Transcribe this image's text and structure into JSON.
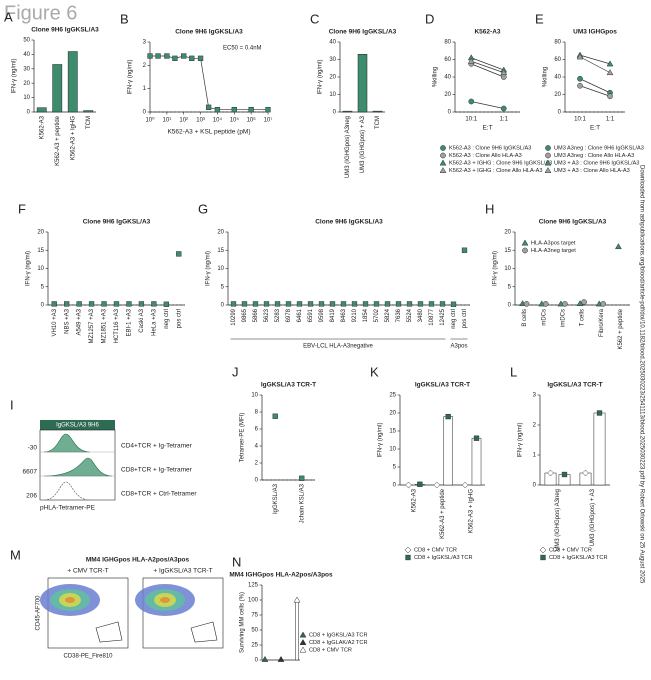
{
  "figure_title": "Figure 6",
  "side_note": "Downloaded from ashpublications.org/blood/article-pdf/doi/10.1182/blood.2025030223/2541113/blood.2025030223.pdf by Robert Orlowski on 25 August 2025",
  "chart_data": [
    {
      "letter": "A",
      "type": "bar",
      "title": "Clone 9H6 IgGKSL/A3",
      "y_label": "IFN-γ (ng/ml)",
      "categories": [
        "K562-A3",
        "K562-A3 + peptide",
        "K562-A3 + IgHG",
        "TCM"
      ],
      "values": [
        3,
        33,
        42,
        1
      ],
      "color": "#3d8c6e",
      "ylim": [
        0,
        50
      ],
      "yticks": [
        0,
        10,
        20,
        30,
        40,
        50
      ]
    },
    {
      "letter": "B",
      "type": "line",
      "title": "Clone 9H6 IgGKSL/A3",
      "y_label": "IFN-γ (ng/ml)",
      "x_label": "K562-A3 + KSL peptide (pM)",
      "annotation": "EC50 = 0.4nM",
      "xlog": true,
      "x": [
        1,
        3,
        10,
        30,
        100,
        300,
        1000,
        3000,
        10000,
        100000,
        1000000,
        10000000
      ],
      "values": [
        2.4,
        2.4,
        2.4,
        2.3,
        2.4,
        2.3,
        2.3,
        0.2,
        0.1,
        0.1,
        0.1,
        0.1
      ],
      "color": "#3d8c6e",
      "xlim": [
        1,
        10000000
      ],
      "xticks": [
        {
          "value": 1,
          "label": "10⁰"
        },
        {
          "value": 10,
          "label": "10¹"
        },
        {
          "value": 100,
          "label": "10²"
        },
        {
          "value": 1000,
          "label": "10³"
        },
        {
          "value": 10000,
          "label": "10⁴"
        },
        {
          "value": 100000,
          "label": "10⁵"
        },
        {
          "value": 1000000,
          "label": "10⁶"
        },
        {
          "value": 10000000,
          "label": "10⁷"
        }
      ],
      "ylim": [
        0,
        3
      ],
      "yticks": [
        0,
        1,
        2,
        3
      ]
    },
    {
      "letter": "C",
      "type": "bar",
      "title": "Clone 9H6 IgGKSL/A3",
      "y_label": "IFN-γ (ng/ml)",
      "categories": [
        "UM3 (IGHGpos) A3neg",
        "UM3 (IGHGpos) + A3",
        "TCM"
      ],
      "values": [
        0.5,
        33,
        0.5
      ],
      "color": "#3d8c6e",
      "ylim": [
        0,
        40
      ],
      "yticks": [
        0,
        10,
        20,
        30,
        40
      ]
    },
    {
      "letter": "D",
      "type": "line",
      "title": "K562-A3",
      "y_label": "%killing",
      "x_label": "E:T",
      "categories": [
        "10:1",
        "1:1"
      ],
      "ylim": [
        0,
        80
      ],
      "yticks": [
        0,
        20,
        40,
        60,
        80
      ],
      "series": [
        {
          "name": "K562-A3 : Clone 9H6 IgGKSL/A3",
          "color": "#3d8c6e",
          "marker": "circle",
          "values": [
            12,
            4
          ]
        },
        {
          "name": "K562-A3 : Clone Allo HLA-A3",
          "color": "#a0a0a0",
          "marker": "circle",
          "values": [
            55,
            40
          ]
        },
        {
          "name": "K562-A3 + IGHG : Clone 9H6 IgGKSL/A3",
          "color": "#3d8c6e",
          "marker": "triangle",
          "values": [
            62,
            48
          ]
        },
        {
          "name": "K562-A3 + IGHG : Clone Allo HLA-A3",
          "color": "#a0a0a0",
          "marker": "triangle",
          "values": [
            58,
            45
          ]
        }
      ]
    },
    {
      "letter": "E",
      "type": "line",
      "title": "UM3 IGHGpos",
      "y_label": "%killing",
      "x_label": "E:T",
      "categories": [
        "10:1",
        "1:1"
      ],
      "ylim": [
        0,
        80
      ],
      "yticks": [
        0,
        20,
        40,
        60,
        80
      ],
      "series": [
        {
          "name": "UM3 A3neg : Clone 9H6 IgGKSL/A3",
          "color": "#3d8c6e",
          "marker": "circle",
          "values": [
            38,
            22
          ]
        },
        {
          "name": "UM3 A3neg : Clone Allo HLA-A3",
          "color": "#a0a0a0",
          "marker": "circle",
          "values": [
            30,
            18
          ]
        },
        {
          "name": "UM3 + A3 : Clone 9H6 IgGKSL/A3",
          "color": "#3d8c6e",
          "marker": "triangle",
          "values": [
            65,
            55
          ]
        },
        {
          "name": "UM3 + A3 : Clone Allo HLA-A3",
          "color": "#a0a0a0",
          "marker": "triangle",
          "values": [
            63,
            45
          ]
        }
      ]
    },
    {
      "letter": "F",
      "type": "scatter",
      "title": "Clone 9H6 IgGKSL/A3",
      "y_label": "IFN-γ (ng/ml)",
      "categories": [
        "VH10 +A3",
        "NBS +A3",
        "A549 +A3",
        "MZ1257 +A3",
        "MZ1851 +A3",
        "HCT116 +A3",
        "EBI-1 +A3",
        "Caski A3",
        "HeLa +A3",
        "neg ctrl",
        "pos ctrl"
      ],
      "values": [
        0.3,
        0.3,
        0.3,
        0.3,
        0.3,
        0.3,
        0.3,
        0.3,
        0.3,
        0.2,
        14
      ],
      "color": "#3d8c6e",
      "marker": "square",
      "ylim": [
        0,
        20
      ],
      "yticks": [
        0,
        5,
        10,
        15,
        20
      ]
    },
    {
      "letter": "G",
      "type": "scatter",
      "title": "Clone 9H6 IgGKSL/A3",
      "y_label": "IFN-γ (ng/ml)",
      "categories": [
        "10299",
        "9865",
        "5866",
        "5623",
        "5283",
        "6978",
        "6461",
        "6591",
        "9598",
        "8419",
        "8463",
        "9210",
        "1854",
        "5702",
        "5824",
        "7636",
        "5524",
        "3480",
        "10877",
        "12425",
        "neg ctrl",
        "pos ctrl"
      ],
      "values": [
        0.3,
        0.3,
        0.3,
        0.3,
        0.3,
        0.3,
        0.3,
        0.3,
        0.3,
        0.3,
        0.3,
        0.3,
        0.3,
        0.3,
        0.3,
        0.3,
        0.3,
        0.3,
        0.3,
        0.3,
        0.2,
        15
      ],
      "color": "#3d8c6e",
      "marker": "square",
      "group_labels": [
        "EBV-LCL HLA-A3negative",
        "A3pos"
      ],
      "ylim": [
        0,
        20
      ],
      "yticks": [
        0,
        5,
        10,
        15,
        20
      ]
    },
    {
      "letter": "H",
      "type": "scatter",
      "title": "Clone 9H6 IgGKSL/A3",
      "y_label": "IFN-γ (ng/ml)",
      "categories": [
        "B cells",
        "mDCs",
        "imDCs",
        "T cells",
        "Fibro/Kera",
        "K562 + peptide"
      ],
      "ylim": [
        0,
        20
      ],
      "yticks": [
        0,
        5,
        10,
        15,
        20
      ],
      "series": [
        {
          "name": "HLA-A3pos target",
          "color": "#3d8c6e",
          "marker": "triangle",
          "values": [
            0.4,
            0.3,
            0.3,
            0.4,
            0.3,
            16
          ]
        },
        {
          "name": "HLA-A3neg target",
          "color": "#a0a0a0",
          "marker": "circle",
          "values": [
            0.3,
            0.3,
            0.3,
            0.8,
            0.3,
            null
          ]
        }
      ]
    },
    {
      "letter": "I",
      "type": "flow",
      "title": "IgGKSL/A3 9H6",
      "x_label": "pHLA-Tetramer-PE",
      "rows": [
        {
          "label": "CD4+TCR + Ig-Tetramer",
          "mfi": -30
        },
        {
          "label": "CD8+TCR + Ig-Tetramer",
          "mfi": 6607
        },
        {
          "label": "CD8+TCR + Ctrl-Tetramer",
          "mfi": 206
        }
      ]
    },
    {
      "letter": "J",
      "type": "scatter",
      "title": "IgGKSL/A3 TCR-T",
      "y_label": "Tetramer-PE (MFI)",
      "categories": [
        "IgGKSL/A3",
        "Jchain KSL/A3"
      ],
      "values": [
        7.5,
        0.2
      ],
      "color": "#3d8c6e",
      "marker": "square",
      "ylim": [
        0,
        10
      ],
      "yticks": [
        0,
        2,
        4,
        6,
        8,
        10
      ]
    },
    {
      "letter": "K",
      "type": "bar",
      "title": "IgGKSL/A3 TCR-T",
      "y_label": "IFN-γ (ng/ml)",
      "categories": [
        "K562-A3",
        "K562-A3 + peptide",
        "K562-A3 + IgHG"
      ],
      "ylim": [
        0,
        25
      ],
      "yticks": [
        0,
        5,
        10,
        15,
        20,
        25
      ],
      "series": [
        {
          "name": "CD8 + CMV TCR",
          "color": "#ffffff",
          "marker": "diamond",
          "values": [
            0,
            0,
            0
          ]
        },
        {
          "name": "CD8 + IgGKSL/A3 TCR",
          "color": "#2e6b53",
          "marker": "square",
          "values": [
            0.2,
            19,
            13
          ]
        }
      ]
    },
    {
      "letter": "L",
      "type": "bar",
      "title": "IgGKSL/A3 TCR-T",
      "y_label": "IFN-γ (ng/ml)",
      "categories": [
        "UM3 (IGHGpos) A3neg",
        "UM3 (IGHGpos) + A3"
      ],
      "ylim": [
        0,
        3
      ],
      "yticks": [
        0,
        1,
        2,
        3
      ],
      "series": [
        {
          "name": "CD8 + CMV TCR",
          "color": "#ffffff",
          "marker": "diamond",
          "values": [
            0.4,
            0.4
          ]
        },
        {
          "name": "CD8 + IgGKSL/A3 TCR",
          "color": "#2e6b53",
          "marker": "square",
          "values": [
            0.35,
            2.4
          ]
        }
      ]
    },
    {
      "letter": "M",
      "type": "flow",
      "title": "MM4 IGHGpos HLA-A2pos/A3pos",
      "y_label": "CD45-AF700",
      "x_label": "CD38-PE_Fire810",
      "plots": [
        "+ CMV TCR-T",
        "+ IgGKSL/A3 TCR-T"
      ]
    },
    {
      "letter": "N",
      "type": "bar",
      "title": "MM4 IGHGpos HLA-A2pos/A3pos",
      "y_label": "Surviving MM cells (%)",
      "categories": [
        null,
        null,
        null
      ],
      "ylim": [
        0,
        125
      ],
      "yticks": [
        0,
        25,
        50,
        75,
        100,
        125
      ],
      "series": [
        {
          "name": "CD8 + IgGKSL/A3 TCR",
          "color": "#2e6b53",
          "marker": "triangle",
          "values": [
            1,
            null,
            null
          ]
        },
        {
          "name": "CD8 + IgGLAK/A2 TCR",
          "color": "#333333",
          "marker": "triangle",
          "values": [
            null,
            1,
            null
          ]
        },
        {
          "name": "CD8 + CMV TCR",
          "color": "#ffffff",
          "marker": "triangle",
          "values": [
            null,
            null,
            100
          ]
        }
      ]
    }
  ]
}
